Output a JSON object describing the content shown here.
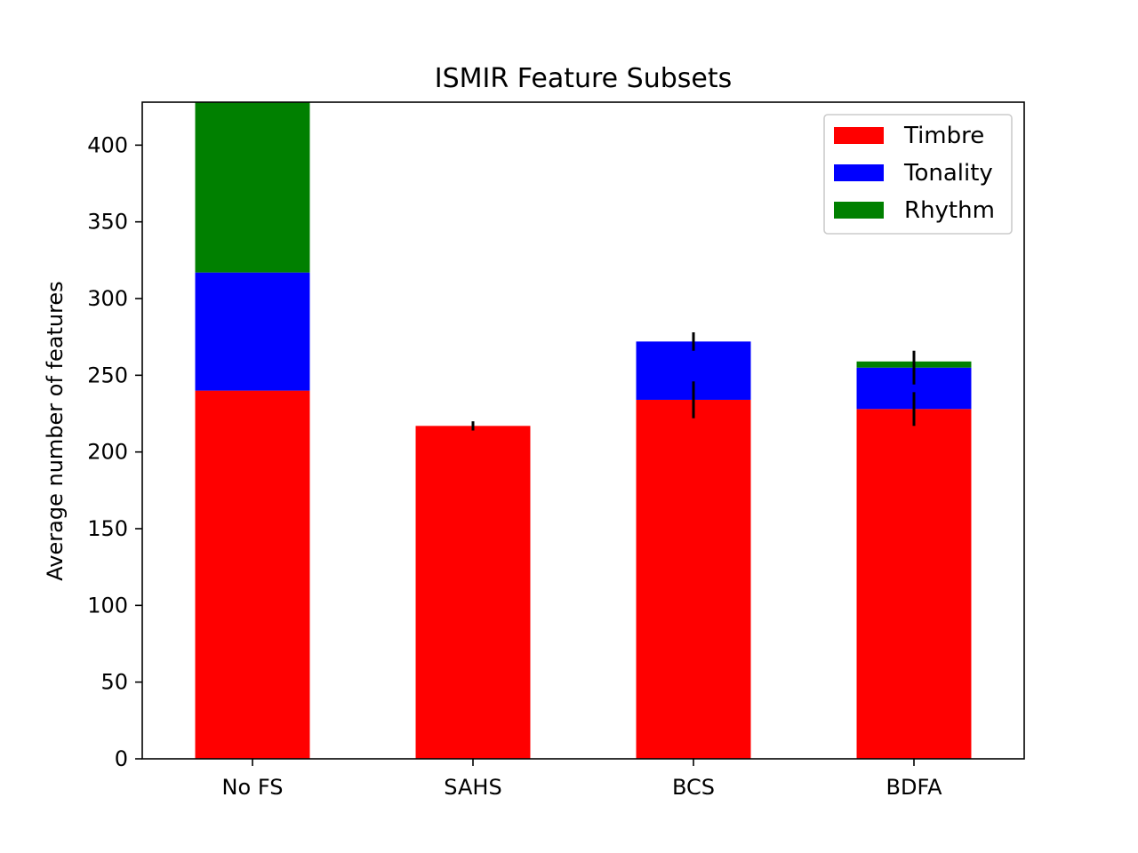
{
  "chart_data": {
    "type": "bar",
    "stacked": true,
    "title": "ISMIR Feature Subsets",
    "xlabel": "",
    "ylabel": "Average number of features",
    "categories": [
      "No FS",
      "SAHS",
      "BCS",
      "BDFA"
    ],
    "series": [
      {
        "name": "Timbre",
        "color": "#ff0000",
        "values": [
          240,
          217,
          234,
          228
        ],
        "errors": [
          0,
          3,
          12,
          11
        ]
      },
      {
        "name": "Tonality",
        "color": "#0000ff",
        "values": [
          77,
          0,
          38,
          27
        ],
        "errors": [
          0,
          0,
          6,
          11
        ]
      },
      {
        "name": "Rhythm",
        "color": "#008000",
        "values": [
          111,
          0,
          0,
          4
        ],
        "errors": [
          0,
          0,
          0,
          0
        ]
      }
    ],
    "ylim": [
      0,
      428
    ],
    "yticks": [
      0,
      50,
      100,
      150,
      200,
      250,
      300,
      350,
      400
    ],
    "legend_position": "top-right",
    "grid": false
  }
}
